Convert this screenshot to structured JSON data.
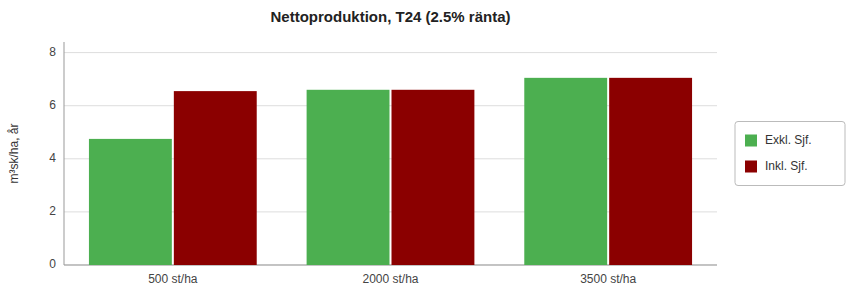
{
  "chart_data": {
    "type": "bar",
    "title": "Nettoproduktion, T24 (2.5% ränta)",
    "categories": [
      "500 st/ha",
      "2000 st/ha",
      "3500 st/ha"
    ],
    "series": [
      {
        "name": "Exkl. Sjf.",
        "color": "#4CAF50",
        "values": [
          4.75,
          6.6,
          7.05
        ]
      },
      {
        "name": "Inkl. Sjf.",
        "color": "#8B0000",
        "values": [
          6.55,
          6.6,
          7.05
        ]
      }
    ],
    "ylabel": "m³sk/ha, år",
    "ylim": [
      0,
      8.4
    ],
    "yticks": [
      0,
      2,
      4,
      6,
      8
    ],
    "grid": true,
    "legend": "right"
  }
}
